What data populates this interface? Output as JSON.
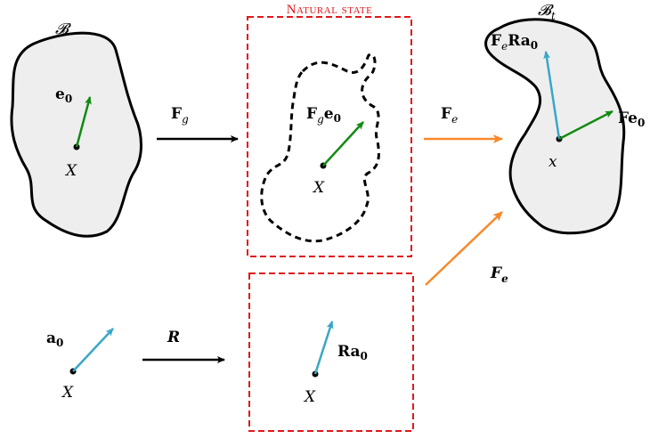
{
  "colors": {
    "body_fill": "#eeeeee",
    "green_vector": "#118a11",
    "cyan_vector": "#3aa6c7",
    "orange_arrow": "#f7892c",
    "red_box": "#e0181c",
    "black": "#000000"
  },
  "labels": {
    "reference_body": "𝓑",
    "current_body": "𝓑",
    "current_body_sub": "t",
    "natural_state_title": "Natural state",
    "e0": "e",
    "e0_sub": "0",
    "X_left": "X",
    "X_mid": "X",
    "X_bottom_left": "X",
    "X_bottom_mid": "X",
    "x_right": "x",
    "Fg_arrow": "F",
    "Fg_arrow_sub": "g",
    "Fge0_F": "F",
    "Fge0_g": "g",
    "Fge0_e": "e",
    "Fge0_0": "0",
    "Fe_arrow": "F",
    "Fe_arrow_sub": "e",
    "FeRa0_F": "F",
    "FeRa0_e": "e",
    "FeRa0_Ra": "Ra",
    "FeRa0_0": "0",
    "Fe0_text": "Fe",
    "Fe0_sub": "0",
    "Fe_lower": "F",
    "Fe_lower_sub": "e",
    "a0": "a",
    "a0_sub": "0",
    "R_arrow": "R",
    "Ra0_text": "Ra",
    "Ra0_sub": "0"
  }
}
